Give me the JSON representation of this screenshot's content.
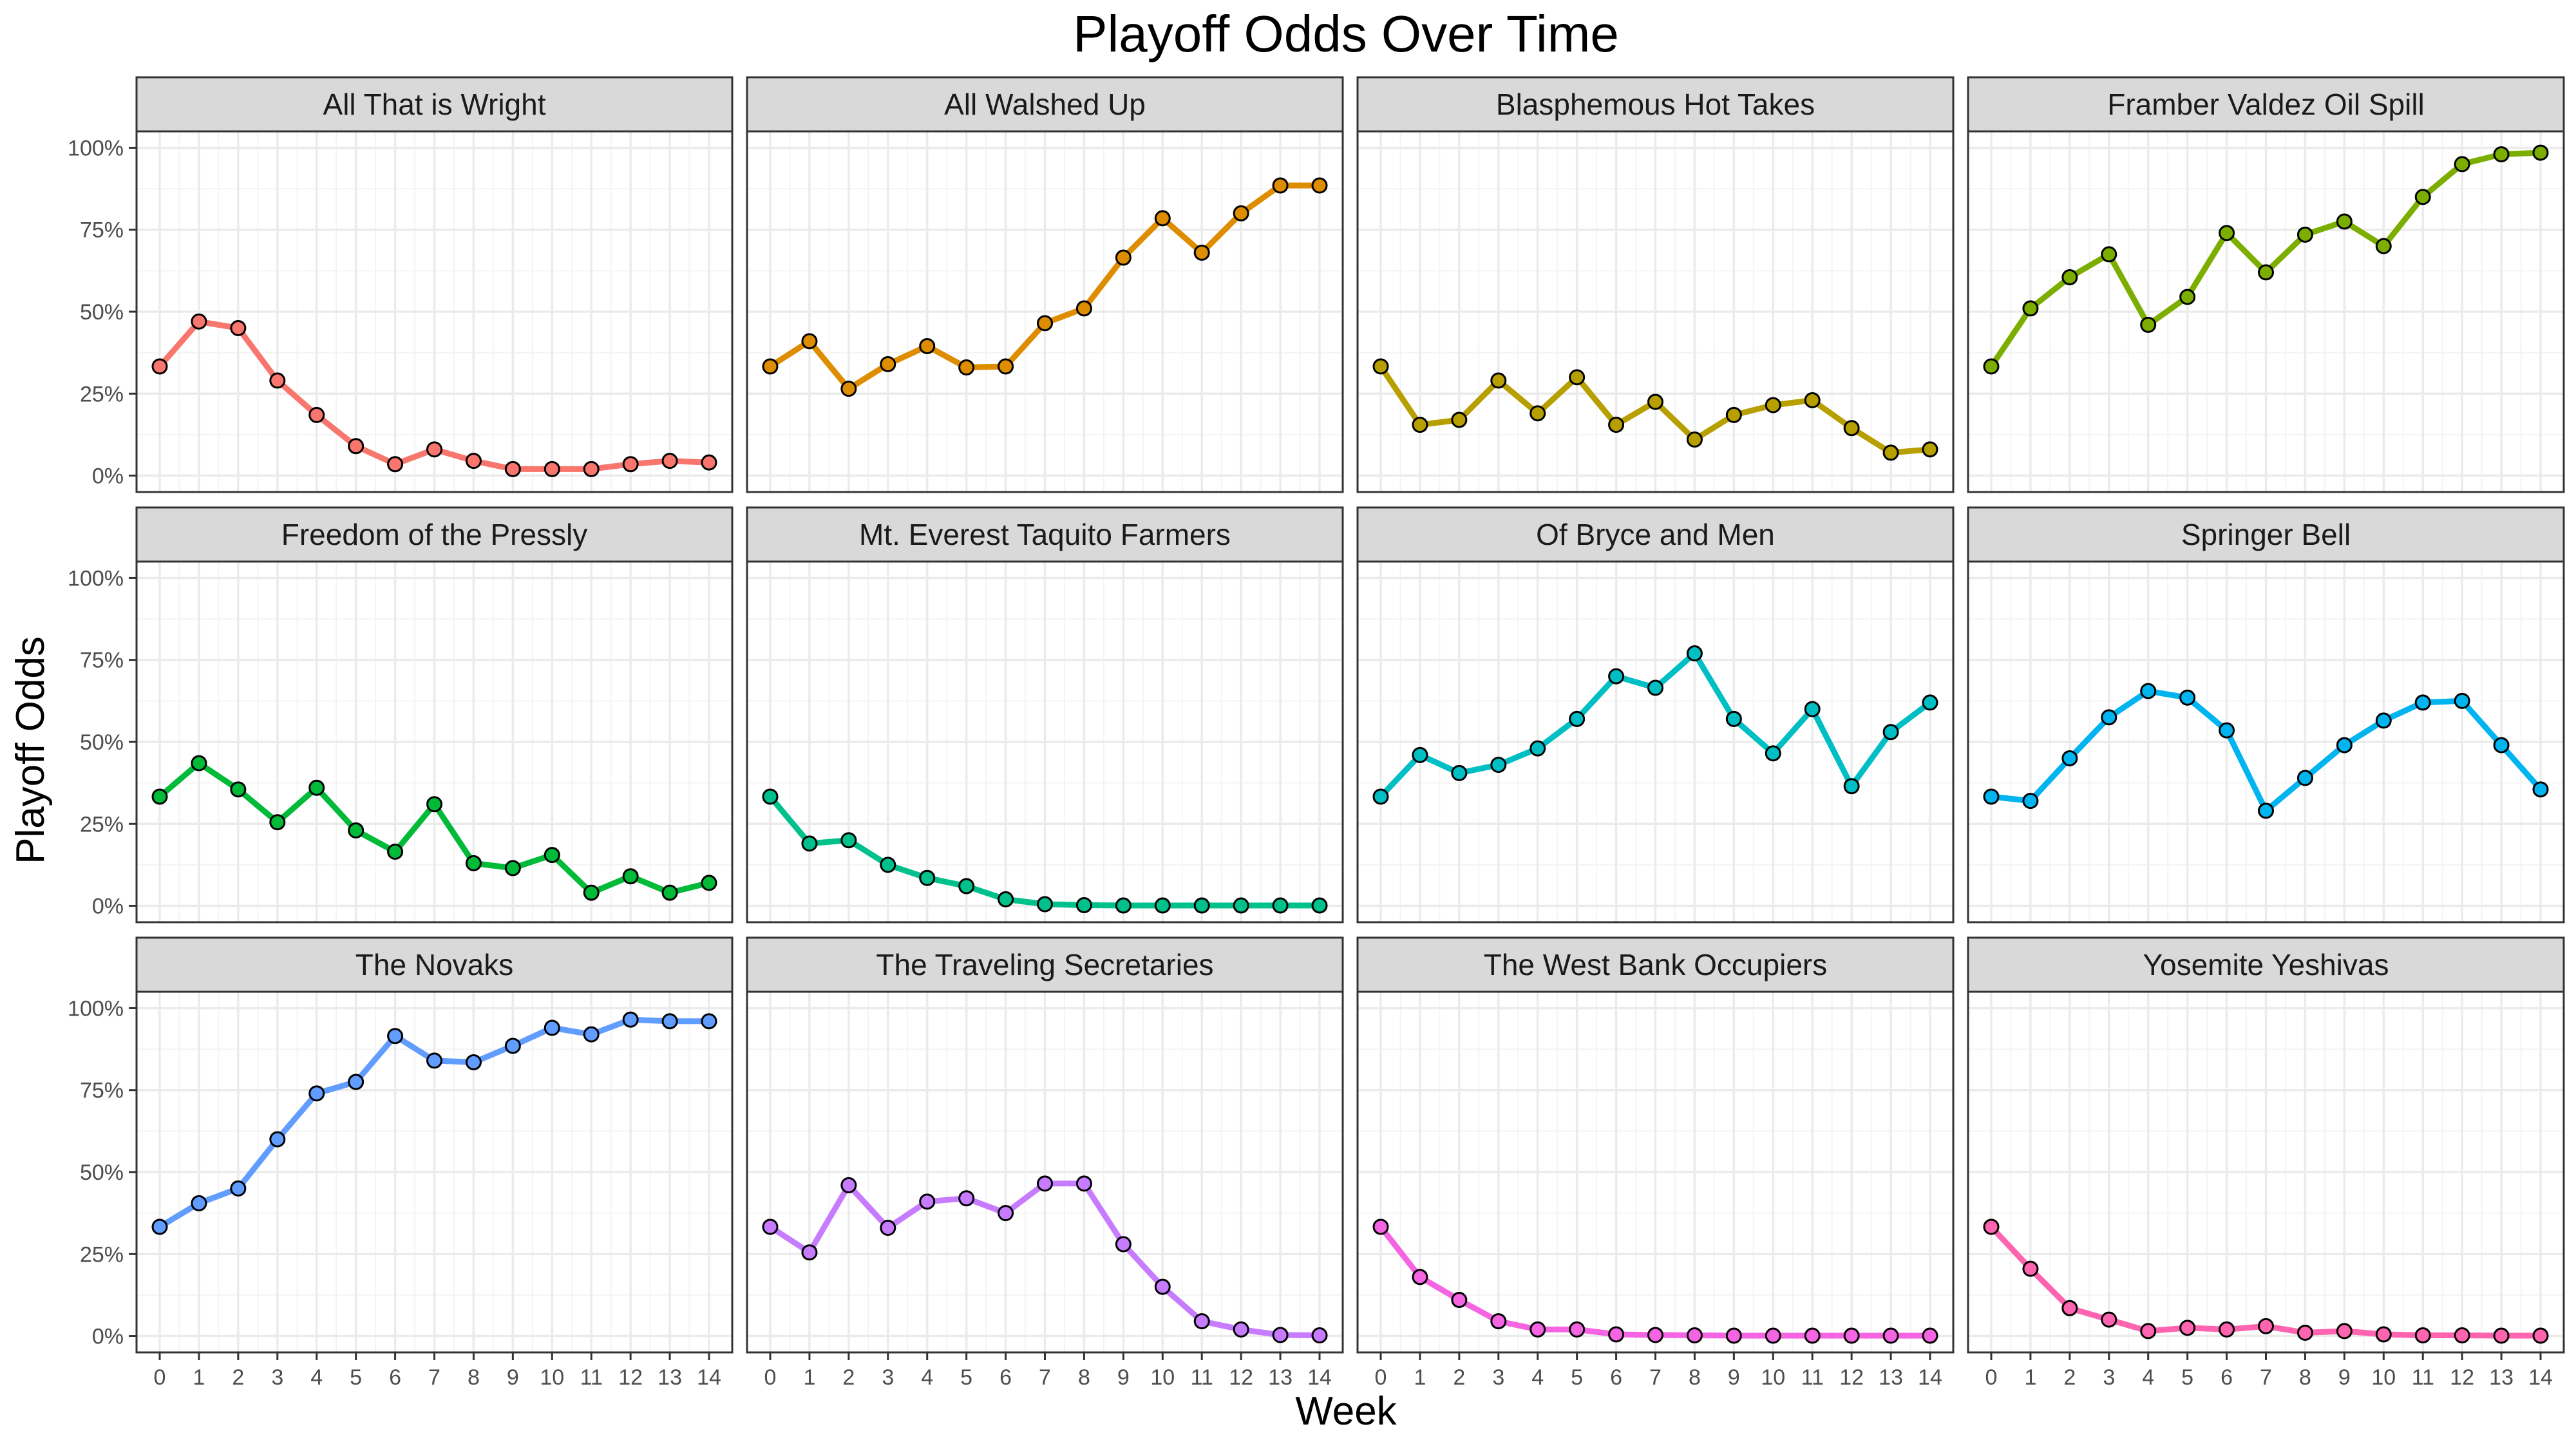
{
  "chart_data": {
    "type": "line",
    "title": "Playoff Odds Over Time",
    "xlabel": "Week",
    "ylabel": "Playoff Odds",
    "x": [
      0,
      1,
      2,
      3,
      4,
      5,
      6,
      7,
      8,
      9,
      10,
      11,
      12,
      13,
      14
    ],
    "x_tick_labels": [
      "0",
      "1",
      "2",
      "3",
      "4",
      "5",
      "6",
      "7",
      "8",
      "9",
      "10",
      "11",
      "12",
      "13",
      "14"
    ],
    "xlim": [
      0,
      14
    ],
    "ylim": [
      0,
      1
    ],
    "y_ticks": [
      0,
      0.25,
      0.5,
      0.75,
      1
    ],
    "y_tick_labels": [
      "0%",
      "25%",
      "50%",
      "75%",
      "100%"
    ],
    "grid": true,
    "facets": {
      "rows": 3,
      "cols": 4
    },
    "series": [
      {
        "name": "All That is Wright",
        "color": "#F8766D",
        "values": [
          0.333,
          0.47,
          0.45,
          0.29,
          0.185,
          0.09,
          0.035,
          0.08,
          0.045,
          0.02,
          0.02,
          0.02,
          0.035,
          0.045,
          0.04
        ]
      },
      {
        "name": "All Walshed Up",
        "color": "#DE8C00",
        "values": [
          0.333,
          0.41,
          0.265,
          0.34,
          0.395,
          0.33,
          0.333,
          0.465,
          0.51,
          0.665,
          0.785,
          0.68,
          0.8,
          0.885,
          0.885
        ]
      },
      {
        "name": "Blasphemous Hot Takes",
        "color": "#B79F00",
        "values": [
          0.333,
          0.155,
          0.17,
          0.29,
          0.19,
          0.3,
          0.155,
          0.225,
          0.11,
          0.185,
          0.215,
          0.23,
          0.145,
          0.07,
          0.08
        ]
      },
      {
        "name": "Framber Valdez Oil Spill",
        "color": "#7CAE00",
        "values": [
          0.333,
          0.51,
          0.605,
          0.675,
          0.46,
          0.545,
          0.74,
          0.62,
          0.735,
          0.775,
          0.7,
          0.85,
          0.95,
          0.98,
          0.985
        ]
      },
      {
        "name": "Freedom of the Pressly",
        "color": "#00BA38",
        "values": [
          0.333,
          0.435,
          0.355,
          0.255,
          0.36,
          0.23,
          0.165,
          0.31,
          0.13,
          0.115,
          0.155,
          0.04,
          0.09,
          0.04,
          0.07
        ]
      },
      {
        "name": "Mt. Everest Taquito Farmers",
        "color": "#00C08B",
        "values": [
          0.333,
          0.19,
          0.2,
          0.125,
          0.085,
          0.06,
          0.02,
          0.005,
          0.002,
          0.001,
          0.001,
          0.001,
          0.001,
          0.001,
          0.001
        ]
      },
      {
        "name": "Of Bryce and Men",
        "color": "#00BFC4",
        "values": [
          0.333,
          0.46,
          0.405,
          0.43,
          0.48,
          0.57,
          0.7,
          0.665,
          0.77,
          0.57,
          0.465,
          0.6,
          0.365,
          0.53,
          0.62
        ]
      },
      {
        "name": "Springer Bell",
        "color": "#00B4F0",
        "values": [
          0.333,
          0.32,
          0.45,
          0.575,
          0.655,
          0.635,
          0.535,
          0.29,
          0.39,
          0.49,
          0.565,
          0.62,
          0.625,
          0.49,
          0.355
        ]
      },
      {
        "name": "The Novaks",
        "color": "#619CFF",
        "values": [
          0.333,
          0.405,
          0.45,
          0.6,
          0.74,
          0.775,
          0.915,
          0.84,
          0.835,
          0.885,
          0.94,
          0.92,
          0.965,
          0.96,
          0.96
        ]
      },
      {
        "name": "The Traveling Secretaries",
        "color": "#C77CFF",
        "values": [
          0.333,
          0.255,
          0.46,
          0.33,
          0.41,
          0.42,
          0.375,
          0.465,
          0.465,
          0.28,
          0.15,
          0.045,
          0.02,
          0.003,
          0.002
        ]
      },
      {
        "name": "The West Bank Occupiers",
        "color": "#F564E3",
        "values": [
          0.333,
          0.18,
          0.11,
          0.045,
          0.02,
          0.02,
          0.005,
          0.003,
          0.002,
          0.001,
          0.001,
          0.001,
          0.001,
          0.001,
          0.001
        ]
      },
      {
        "name": "Yosemite Yeshivas",
        "color": "#FF64B0",
        "values": [
          0.333,
          0.205,
          0.085,
          0.05,
          0.015,
          0.025,
          0.02,
          0.03,
          0.01,
          0.015,
          0.005,
          0.002,
          0.002,
          0.001,
          0.001
        ]
      }
    ]
  }
}
